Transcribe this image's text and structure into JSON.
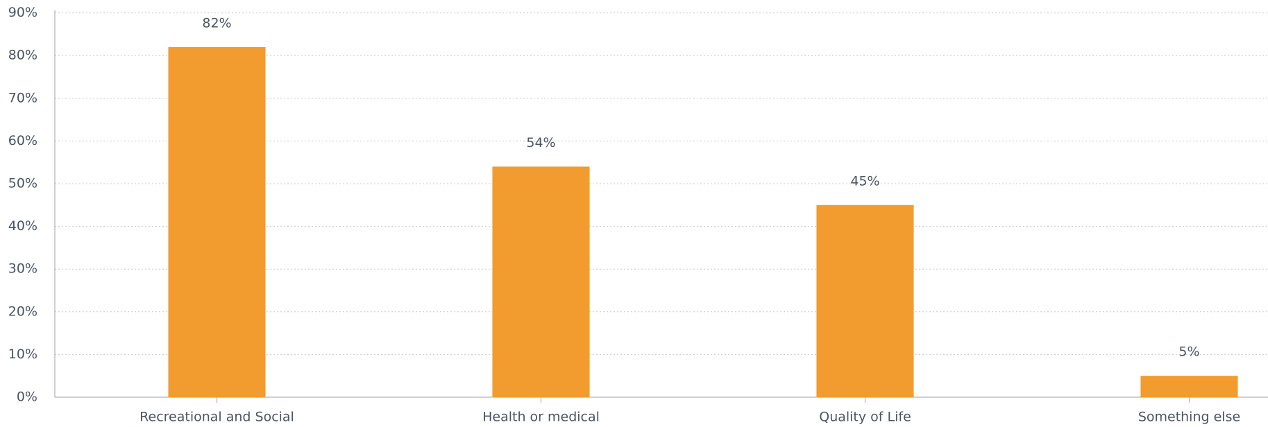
{
  "chart_data": {
    "type": "bar",
    "categories": [
      "Recreational and Social",
      "Health or medical",
      "Quality of Life",
      "Something else"
    ],
    "values": [
      82,
      54,
      45,
      5
    ],
    "value_labels": [
      "82%",
      "54%",
      "45%",
      "5%"
    ],
    "color": "#f29b2e",
    "ylim": [
      0,
      90
    ],
    "yticks": [
      {
        "value": 0,
        "label": "0%"
      },
      {
        "value": 10,
        "label": "10%"
      },
      {
        "value": 20,
        "label": "20%"
      },
      {
        "value": 30,
        "label": "30%"
      },
      {
        "value": 40,
        "label": "40%"
      },
      {
        "value": 50,
        "label": "50%"
      },
      {
        "value": 60,
        "label": "60%"
      },
      {
        "value": 70,
        "label": "70%"
      },
      {
        "value": 80,
        "label": "80%"
      },
      {
        "value": 90,
        "label": "90%"
      }
    ],
    "grid": true
  }
}
